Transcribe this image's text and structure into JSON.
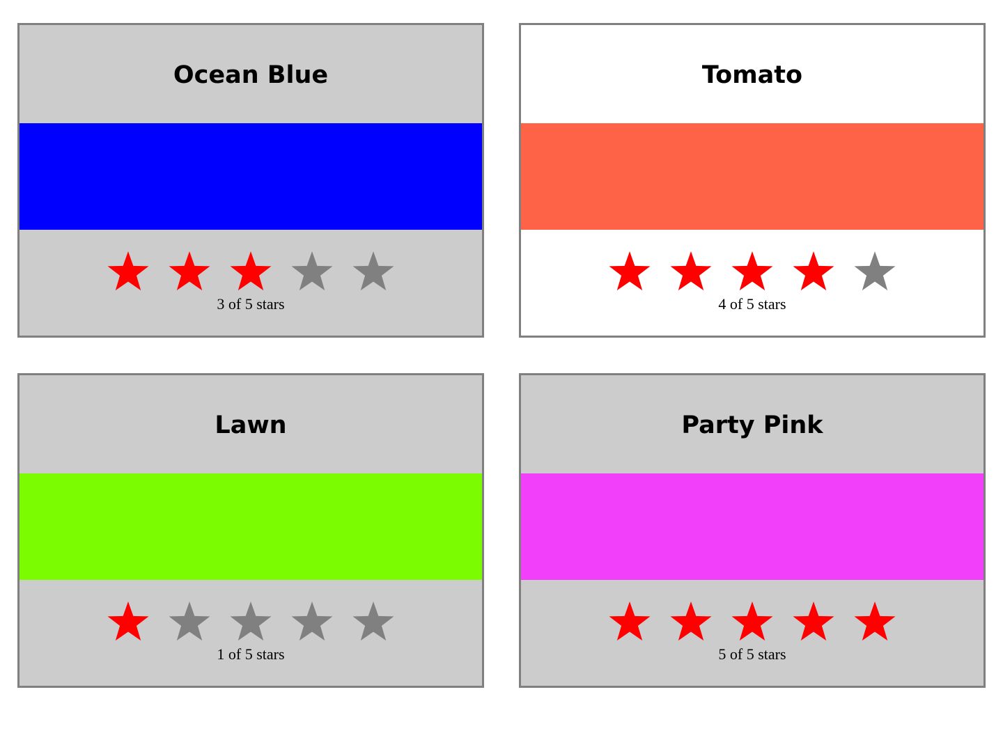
{
  "star_colors": {
    "filled": "#ff0000",
    "empty": "#808080"
  },
  "cards": [
    {
      "title": "Ocean Blue",
      "background": "#cccccc",
      "swatch": "#0000ff",
      "rating": 3,
      "max": 5,
      "caption": "3 of 5 stars"
    },
    {
      "title": "Tomato",
      "background": "#ffffff",
      "swatch": "#ff6347",
      "rating": 4,
      "max": 5,
      "caption": "4 of 5 stars"
    },
    {
      "title": "Lawn",
      "background": "#cccccc",
      "swatch": "#7cfc00",
      "rating": 1,
      "max": 5,
      "caption": "1 of 5 stars"
    },
    {
      "title": "Party Pink",
      "background": "#cccccc",
      "swatch": "#f23ffa",
      "rating": 5,
      "max": 5,
      "caption": "5 of 5 stars"
    }
  ]
}
